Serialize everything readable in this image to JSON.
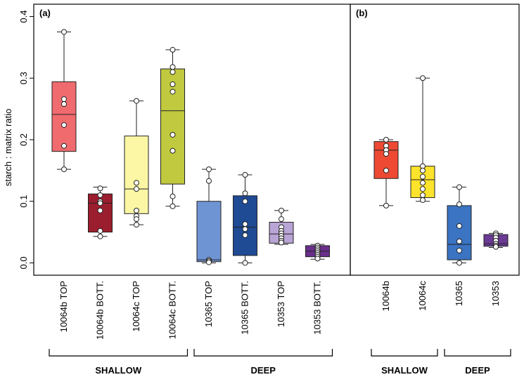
{
  "chart_data": {
    "type": "boxplot",
    "ylabel": "starch : matrix ratio",
    "ylim": [
      -0.02,
      0.42
    ],
    "yticks": [
      "0.0",
      "0.1",
      "0.2",
      "0.3",
      "0.4"
    ],
    "panels": [
      {
        "label": "(a)",
        "categories": [
          "10064b TOP",
          "10064b BOTT.",
          "10064c TOP",
          "10064c BOTT.",
          "10365 TOP",
          "10365 BOTT.",
          "10353 TOP",
          "10353 BOTT."
        ],
        "boxes": [
          {
            "color": "#f06b6e",
            "min": 0.152,
            "q1": 0.181,
            "median": 0.241,
            "q3": 0.294,
            "max": 0.375,
            "points": [
              0.375,
              0.266,
              0.258,
              0.224,
              0.19,
              0.152
            ]
          },
          {
            "color": "#9b1e2e",
            "min": 0.043,
            "q1": 0.05,
            "median": 0.097,
            "q3": 0.112,
            "max": 0.123,
            "points": [
              0.121,
              0.11,
              0.1,
              0.097,
              0.085,
              0.052,
              0.043
            ]
          },
          {
            "color": "#fbf7a4",
            "min": 0.062,
            "q1": 0.08,
            "median": 0.12,
            "q3": 0.206,
            "max": 0.263,
            "points": [
              0.263,
              0.13,
              0.12,
              0.085,
              0.076,
              0.071,
              0.062
            ]
          },
          {
            "color": "#c1c93f",
            "min": 0.092,
            "q1": 0.128,
            "median": 0.247,
            "q3": 0.315,
            "max": 0.346,
            "points": [
              0.346,
              0.318,
              0.31,
              0.29,
              0.278,
              0.208,
              0.182,
              0.108,
              0.092
            ]
          },
          {
            "color": "#6f94d4",
            "min": 0.0,
            "q1": 0.002,
            "median": 0.005,
            "q3": 0.1,
            "max": 0.152,
            "points": [
              0.152,
              0.133,
              0.005,
              0.003,
              0.001
            ]
          },
          {
            "color": "#1f4a94",
            "min": 0.0,
            "q1": 0.012,
            "median": 0.058,
            "q3": 0.109,
            "max": 0.143,
            "points": [
              0.143,
              0.113,
              0.1,
              0.063,
              0.055,
              0.045,
              0.0
            ]
          },
          {
            "color": "#b9a4d6",
            "min": 0.03,
            "q1": 0.032,
            "median": 0.047,
            "q3": 0.066,
            "max": 0.085,
            "points": [
              0.085,
              0.071,
              0.058,
              0.052,
              0.048,
              0.044,
              0.04,
              0.036,
              0.033
            ]
          },
          {
            "color": "#6a2f8c",
            "min": 0.006,
            "q1": 0.01,
            "median": 0.019,
            "q3": 0.028,
            "max": 0.03,
            "points": [
              0.028,
              0.025,
              0.022,
              0.019,
              0.016,
              0.013,
              0.01,
              0.007
            ]
          }
        ],
        "groups": [
          {
            "label": "SHALLOW",
            "from": 0,
            "to": 3
          },
          {
            "label": "DEEP",
            "from": 4,
            "to": 7
          }
        ]
      },
      {
        "label": "(b)",
        "categories": [
          "10064b",
          "10064c",
          "10365",
          "10353"
        ],
        "boxes": [
          {
            "color": "#ee4a33",
            "min": 0.093,
            "q1": 0.137,
            "median": 0.183,
            "q3": 0.197,
            "max": 0.2,
            "points": [
              0.2,
              0.19,
              0.183,
              0.177,
              0.15,
              0.093
            ]
          },
          {
            "color": "#fde32b",
            "min": 0.1,
            "q1": 0.106,
            "median": 0.135,
            "q3": 0.157,
            "max": 0.3,
            "points": [
              0.3,
              0.157,
              0.15,
              0.14,
              0.13,
              0.12,
              0.11,
              0.102
            ]
          },
          {
            "color": "#3a74c2",
            "min": 0.0,
            "q1": 0.005,
            "median": 0.03,
            "q3": 0.093,
            "max": 0.123,
            "points": [
              0.123,
              0.095,
              0.06,
              0.035,
              0.02,
              0.0
            ]
          },
          {
            "color": "#6a3a94",
            "min": 0.025,
            "q1": 0.027,
            "median": 0.031,
            "q3": 0.046,
            "max": 0.048,
            "points": [
              0.048,
              0.045,
              0.041,
              0.036,
              0.031,
              0.028,
              0.026
            ]
          }
        ],
        "groups": [
          {
            "label": "SHALLOW",
            "from": 0,
            "to": 1
          },
          {
            "label": "DEEP",
            "from": 2,
            "to": 3
          }
        ]
      }
    ]
  }
}
